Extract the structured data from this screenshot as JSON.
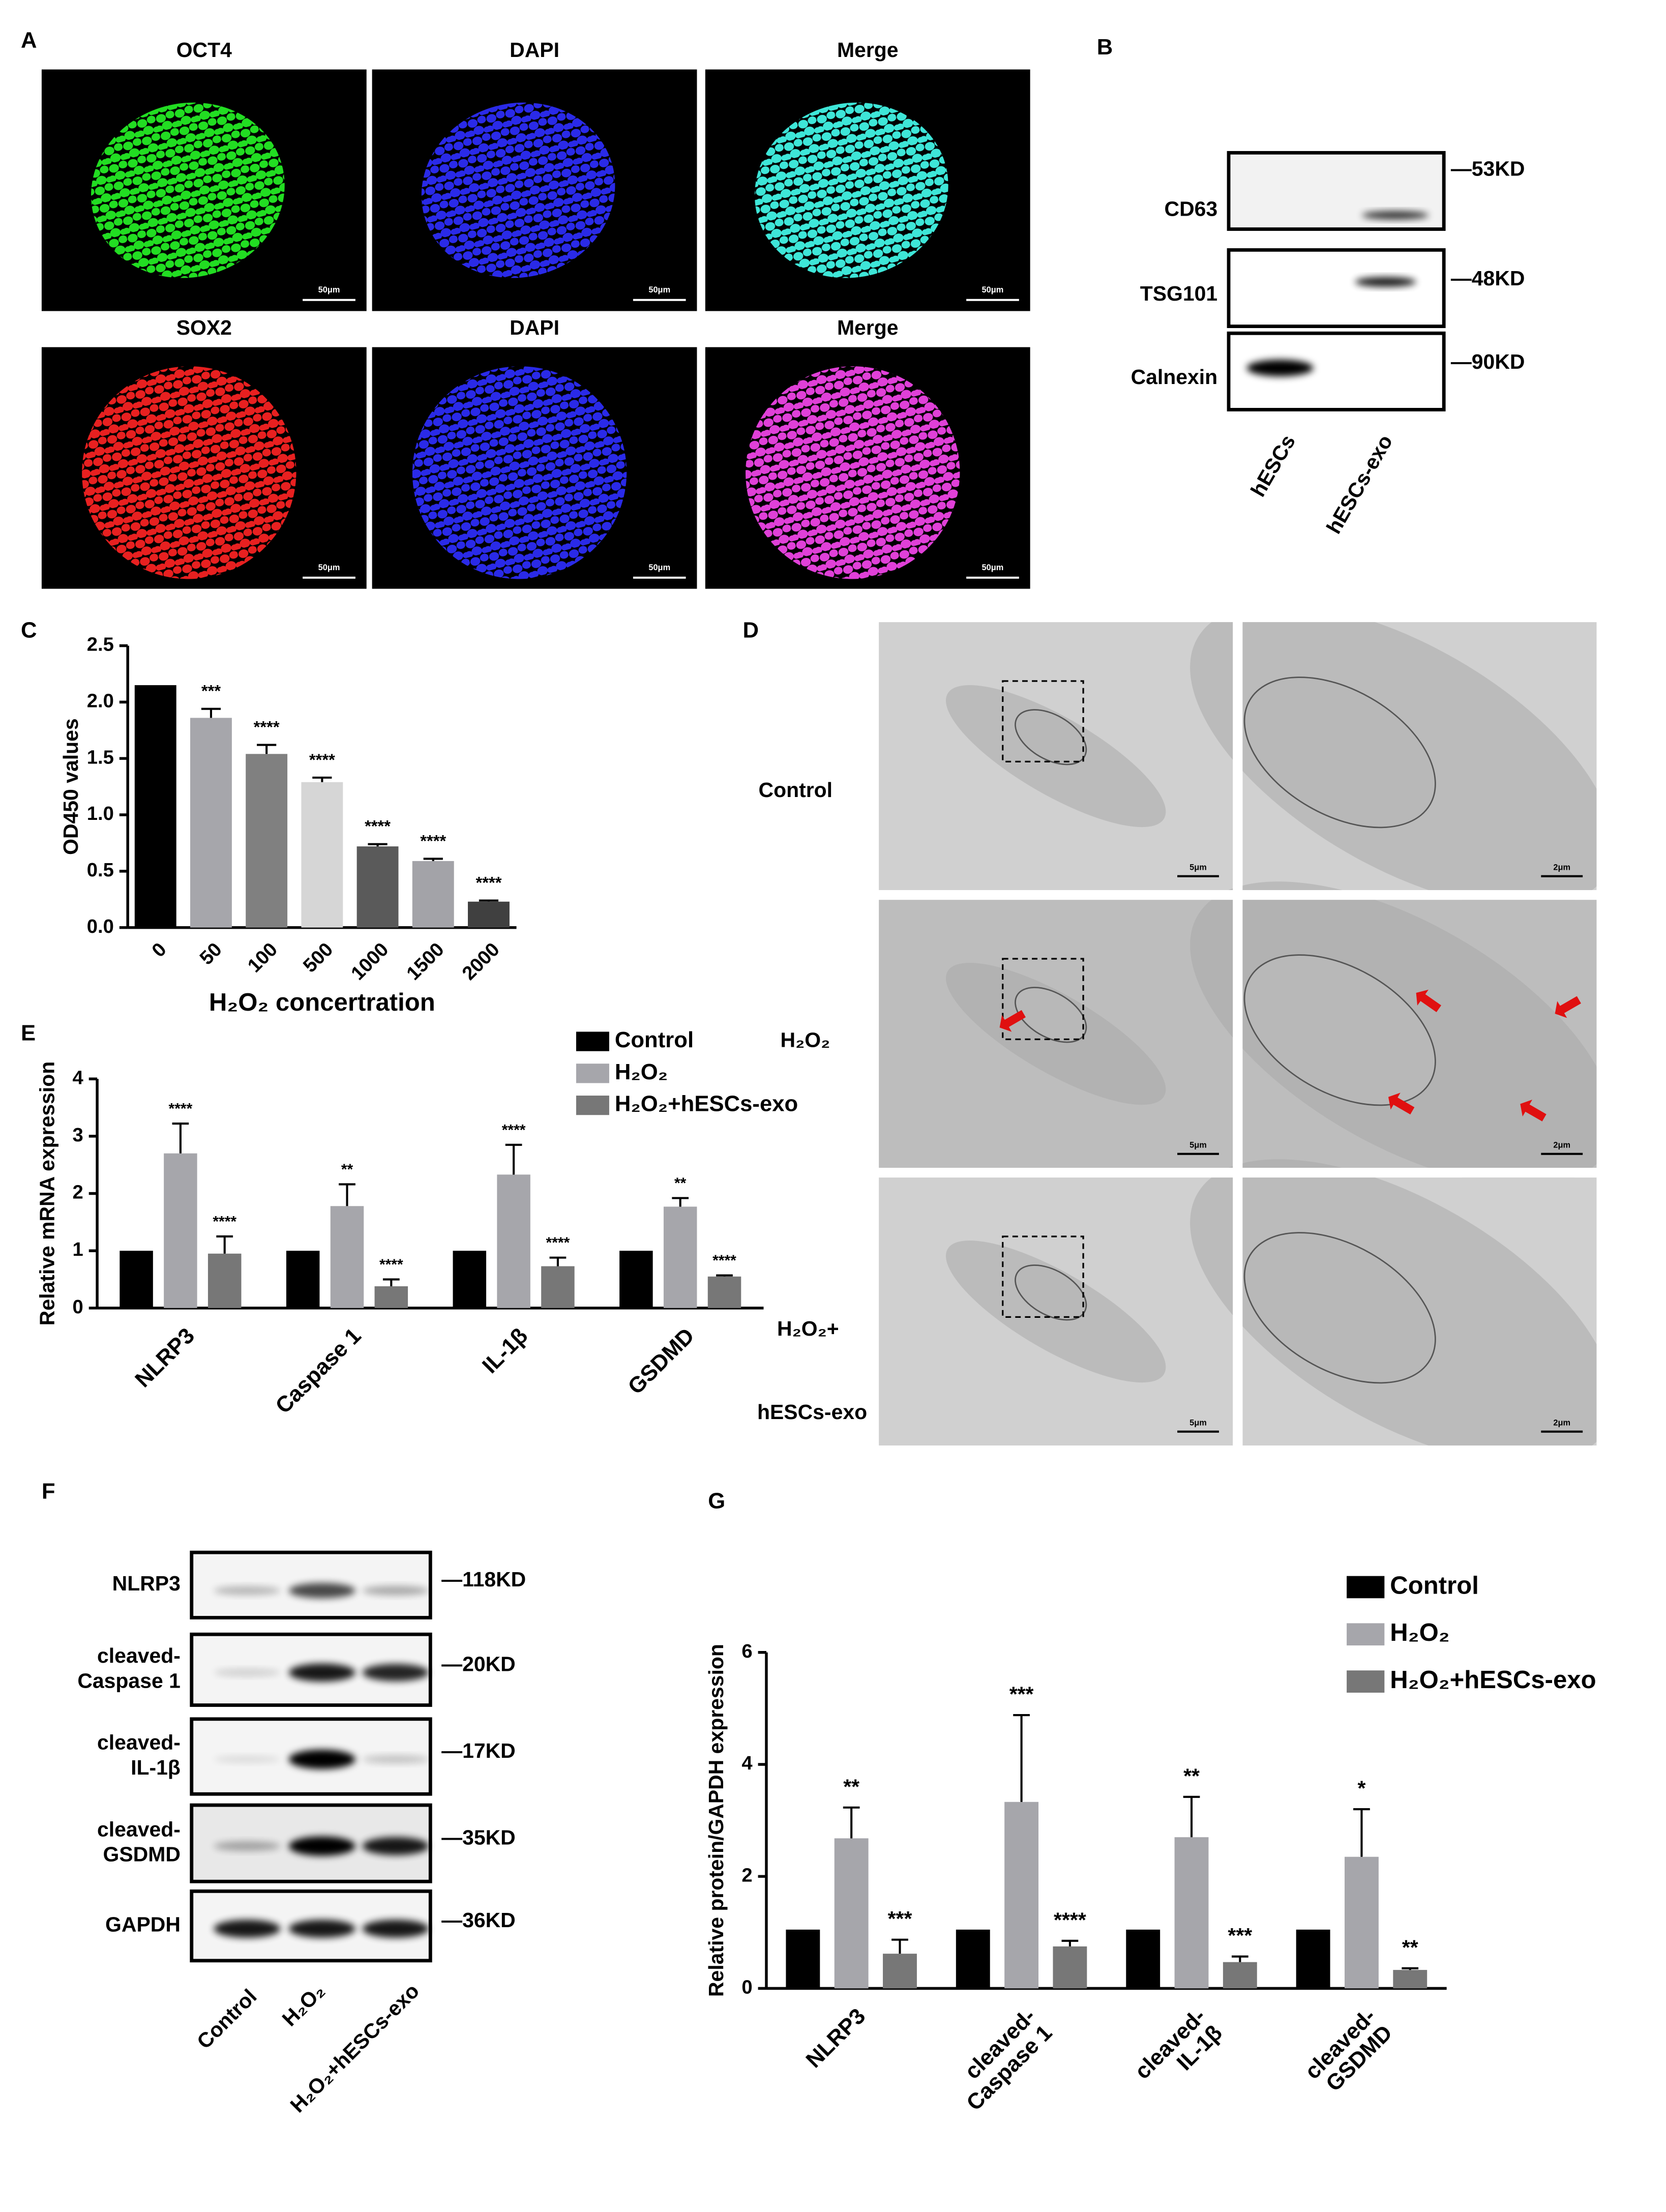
{
  "panel_labels": [
    "A",
    "B",
    "C",
    "D",
    "E",
    "F",
    "G"
  ],
  "panel_a": {
    "rows": [
      {
        "titles": [
          "OCT4",
          "DAPI",
          "Merge"
        ]
      },
      {
        "titles": [
          "SOX2",
          "DAPI",
          "Merge"
        ]
      }
    ],
    "scale_bars": [
      "50μm",
      "50μm",
      "50μm",
      "50μm",
      "50μm",
      "50μm"
    ]
  },
  "panel_b": {
    "rows": [
      {
        "label": "CD63",
        "size": "—53KD"
      },
      {
        "label": "TSG101",
        "size": "—48KD"
      },
      {
        "label": "Calnexin",
        "size": "—90KD"
      }
    ],
    "lanes": [
      "hESCs",
      "hESCs-exo"
    ]
  },
  "panel_d": {
    "row_labels": [
      [
        "Control"
      ],
      [
        "H₂O₂"
      ],
      [
        "H₂O₂+",
        "hESCs-exo"
      ]
    ],
    "scale_bars": [
      "5μm",
      "2μm",
      "5μm",
      "2μm",
      "5μm",
      "2μm"
    ]
  },
  "panel_f": {
    "rows": [
      {
        "label": [
          "NLRP3"
        ],
        "size": "—118KD"
      },
      {
        "label": [
          "cleaved-",
          "Caspase 1"
        ],
        "size": "—20KD"
      },
      {
        "label": [
          "cleaved-",
          "IL-1β"
        ],
        "size": "—17KD"
      },
      {
        "label": [
          "cleaved-",
          "GSDMD"
        ],
        "size": "—35KD"
      },
      {
        "label": [
          "GAPDH"
        ],
        "size": "—36KD"
      }
    ],
    "lanes": [
      "Control",
      "H₂O₂",
      "H₂O₂+hESCs-exo"
    ]
  },
  "chart_data": [
    {
      "type": "bar",
      "x_label": "H₂O₂ concertration",
      "y_label": "OD450 values",
      "categories": [
        "0",
        "50",
        "100",
        "500",
        "1000",
        "1500",
        "2000"
      ],
      "values": [
        2.15,
        1.86,
        1.54,
        1.29,
        0.72,
        0.59,
        0.23
      ],
      "errors": [
        0,
        0.08,
        0.08,
        0.04,
        0.02,
        0.02,
        0.01
      ],
      "colors": [
        "#000000",
        "#a6a6ab",
        "#808080",
        "#d6d6d6",
        "#5a5a5a",
        "#a3a3a8",
        "#404040"
      ],
      "annotations": [
        null,
        "***",
        "****",
        "****",
        "****",
        "****",
        "****"
      ],
      "ylim": [
        0,
        2.5
      ],
      "yticks": [
        {
          "value": 0,
          "label": "0.0"
        },
        0.5,
        {
          "value": 1,
          "label": "1.0"
        },
        1.5,
        {
          "value": 2,
          "label": "2.0"
        },
        2.5
      ]
    },
    {
      "type": "grouped_bar",
      "y_label": "Relative mRNA expression",
      "categories": [
        [
          "NLRP3"
        ],
        [
          "Caspase 1"
        ],
        [
          "IL-1β"
        ],
        [
          "GSDMD"
        ]
      ],
      "series": [
        {
          "name": "Control",
          "color": "#000000",
          "values": [
            1,
            1,
            1,
            1
          ]
        },
        {
          "name": "H₂O₂",
          "color": "#a6a6ab",
          "values": [
            2.7,
            1.78,
            2.33,
            1.77
          ],
          "errors": [
            0.52,
            0.38,
            0.52,
            0.15
          ],
          "annotations": [
            "****",
            "**",
            "****",
            "**"
          ]
        },
        {
          "name": "H₂O₂+hESCs-exo",
          "color": "#777777",
          "values": [
            0.95,
            0.38,
            0.73,
            0.55
          ],
          "errors": [
            0.3,
            0.12,
            0.15,
            0.02
          ],
          "annotations": [
            "****",
            "****",
            "****",
            "****"
          ]
        }
      ],
      "ylim": [
        0,
        4
      ],
      "yticks": [
        0,
        1,
        2,
        3,
        4
      ],
      "legend": "top-right"
    },
    {
      "type": "grouped_bar",
      "y_label": "Relative protein/GAPDH expression",
      "categories": [
        [
          "NLRP3"
        ],
        [
          "cleaved-",
          "Caspase 1"
        ],
        [
          "cleaved-",
          "IL-1β"
        ],
        [
          "cleaved-",
          "GSDMD"
        ]
      ],
      "series": [
        {
          "name": "Control",
          "color": "#000000",
          "values": [
            1.05,
            1.05,
            1.05,
            1.05
          ]
        },
        {
          "name": "H₂O₂",
          "color": "#a6a6ab",
          "values": [
            2.68,
            3.33,
            2.7,
            2.35
          ],
          "errors": [
            0.55,
            1.55,
            0.72,
            0.85
          ],
          "annotations": [
            "**",
            "***",
            "**",
            "*"
          ]
        },
        {
          "name": "H₂O₂+hESCs-exo",
          "color": "#777777",
          "values": [
            0.62,
            0.75,
            0.47,
            0.33
          ],
          "errors": [
            0.25,
            0.1,
            0.1,
            0.03
          ],
          "annotations": [
            "***",
            "****",
            "***",
            "**"
          ]
        }
      ],
      "ylim": [
        0,
        6
      ],
      "yticks": [
        0,
        2,
        4,
        6
      ],
      "legend": "top-right"
    }
  ]
}
